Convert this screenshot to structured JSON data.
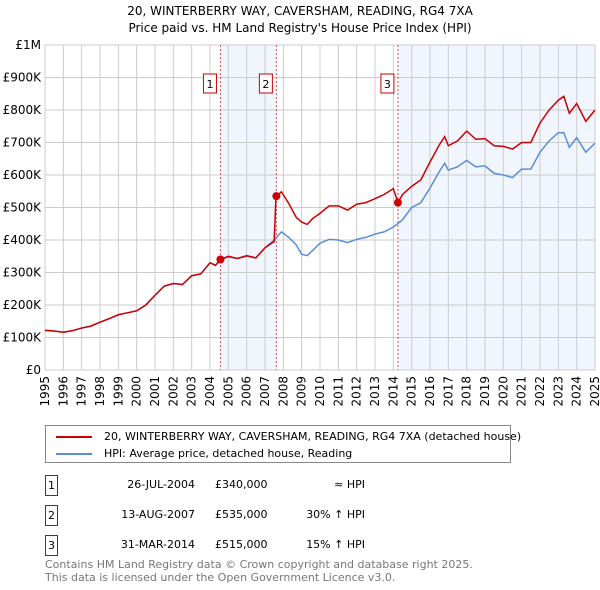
{
  "chart_data": {
    "type": "line",
    "title": "20, WINTERBERRY WAY, CAVERSHAM, READING, RG4 7XA",
    "subtitle": "Price paid vs. HM Land Registry's House Price Index (HPI)",
    "xlim": [
      1995,
      2025
    ],
    "ylim": [
      0,
      1000000
    ],
    "x_ticks": [
      "1995",
      "1996",
      "1997",
      "1998",
      "1999",
      "2000",
      "2001",
      "2002",
      "2003",
      "2004",
      "2005",
      "2006",
      "2007",
      "2008",
      "2009",
      "2010",
      "2011",
      "2012",
      "2013",
      "2014",
      "2015",
      "2016",
      "2017",
      "2018",
      "2019",
      "2020",
      "2021",
      "2022",
      "2023",
      "2024",
      "2025"
    ],
    "y_ticks": [
      {
        "v": 0,
        "label": "£0"
      },
      {
        "v": 100000,
        "label": "£100K"
      },
      {
        "v": 200000,
        "label": "£200K"
      },
      {
        "v": 300000,
        "label": "£300K"
      },
      {
        "v": 400000,
        "label": "£400K"
      },
      {
        "v": 500000,
        "label": "£500K"
      },
      {
        "v": 600000,
        "label": "£600K"
      },
      {
        "v": 700000,
        "label": "£700K"
      },
      {
        "v": 800000,
        "label": "£800K"
      },
      {
        "v": 900000,
        "label": "£900K"
      },
      {
        "v": 1000000,
        "label": "£1M"
      }
    ],
    "grid": true,
    "shaded_periods": [
      [
        2004.57,
        2007.62
      ],
      [
        2014.25,
        2025
      ]
    ],
    "series": [
      {
        "name": "20, WINTERBERRY WAY, CAVERSHAM, READING, RG4 7XA (detached house)",
        "color": "#cc0000",
        "points": [
          [
            1995,
            122
          ],
          [
            1995.5,
            120
          ],
          [
            1996,
            116
          ],
          [
            1996.5,
            121
          ],
          [
            1997,
            129
          ],
          [
            1997.5,
            135
          ],
          [
            1998,
            147
          ],
          [
            1998.5,
            158
          ],
          [
            1999,
            170
          ],
          [
            1999.5,
            176
          ],
          [
            2000,
            182
          ],
          [
            2000.5,
            200
          ],
          [
            2001,
            230
          ],
          [
            2001.5,
            258
          ],
          [
            2002,
            266
          ],
          [
            2002.5,
            263
          ],
          [
            2003,
            290
          ],
          [
            2003.5,
            296
          ],
          [
            2004,
            330
          ],
          [
            2004.3,
            322
          ],
          [
            2004.57,
            340
          ],
          [
            2005,
            350
          ],
          [
            2005.5,
            343
          ],
          [
            2006,
            352
          ],
          [
            2006.5,
            345
          ],
          [
            2007,
            376
          ],
          [
            2007.5,
            395
          ],
          [
            2007.6,
            535
          ],
          [
            2007.9,
            548
          ],
          [
            2008.3,
            512
          ],
          [
            2008.7,
            470
          ],
          [
            2009,
            455
          ],
          [
            2009.3,
            448
          ],
          [
            2009.6,
            466
          ],
          [
            2010,
            482
          ],
          [
            2010.5,
            505
          ],
          [
            2011,
            505
          ],
          [
            2011.5,
            492
          ],
          [
            2012,
            510
          ],
          [
            2012.5,
            515
          ],
          [
            2013,
            527
          ],
          [
            2013.5,
            540
          ],
          [
            2014,
            558
          ],
          [
            2014.25,
            515
          ],
          [
            2014.5,
            540
          ],
          [
            2015,
            565
          ],
          [
            2015.5,
            585
          ],
          [
            2016,
            640
          ],
          [
            2016.5,
            692
          ],
          [
            2016.8,
            718
          ],
          [
            2017,
            690
          ],
          [
            2017.5,
            705
          ],
          [
            2018,
            735
          ],
          [
            2018.5,
            710
          ],
          [
            2019,
            712
          ],
          [
            2019.5,
            690
          ],
          [
            2020,
            688
          ],
          [
            2020.5,
            680
          ],
          [
            2021,
            700
          ],
          [
            2021.5,
            700
          ],
          [
            2022,
            760
          ],
          [
            2022.5,
            800
          ],
          [
            2023,
            830
          ],
          [
            2023.3,
            842
          ],
          [
            2023.6,
            790
          ],
          [
            2024,
            820
          ],
          [
            2024.5,
            765
          ],
          [
            2025,
            800
          ]
        ]
      },
      {
        "name": "HPI: Average price, detached house, Reading",
        "color": "#5b8ed6",
        "points": [
          [
            1995,
            122
          ],
          [
            1995.5,
            120
          ],
          [
            1996,
            116
          ],
          [
            1996.5,
            121
          ],
          [
            1997,
            129
          ],
          [
            1997.5,
            135
          ],
          [
            1998,
            147
          ],
          [
            1998.5,
            158
          ],
          [
            1999,
            170
          ],
          [
            1999.5,
            176
          ],
          [
            2000,
            182
          ],
          [
            2000.5,
            200
          ],
          [
            2001,
            230
          ],
          [
            2001.5,
            258
          ],
          [
            2002,
            266
          ],
          [
            2002.5,
            263
          ],
          [
            2003,
            290
          ],
          [
            2003.5,
            296
          ],
          [
            2004,
            330
          ],
          [
            2004.3,
            322
          ],
          [
            2004.57,
            340
          ],
          [
            2005,
            348
          ],
          [
            2005.5,
            343
          ],
          [
            2006,
            350
          ],
          [
            2006.5,
            345
          ],
          [
            2007,
            376
          ],
          [
            2007.5,
            400
          ],
          [
            2007.9,
            425
          ],
          [
            2008.3,
            408
          ],
          [
            2008.7,
            385
          ],
          [
            2009,
            356
          ],
          [
            2009.3,
            352
          ],
          [
            2009.6,
            368
          ],
          [
            2010,
            390
          ],
          [
            2010.5,
            402
          ],
          [
            2011,
            400
          ],
          [
            2011.5,
            392
          ],
          [
            2012,
            402
          ],
          [
            2012.5,
            408
          ],
          [
            2013,
            418
          ],
          [
            2013.5,
            425
          ],
          [
            2014,
            440
          ],
          [
            2014.5,
            462
          ],
          [
            2015,
            500
          ],
          [
            2015.5,
            515
          ],
          [
            2016,
            560
          ],
          [
            2016.5,
            610
          ],
          [
            2016.8,
            636
          ],
          [
            2017,
            615
          ],
          [
            2017.5,
            625
          ],
          [
            2018,
            645
          ],
          [
            2018.5,
            625
          ],
          [
            2019,
            628
          ],
          [
            2019.5,
            605
          ],
          [
            2020,
            600
          ],
          [
            2020.5,
            592
          ],
          [
            2021,
            618
          ],
          [
            2021.5,
            618
          ],
          [
            2022,
            670
          ],
          [
            2022.5,
            705
          ],
          [
            2023,
            730
          ],
          [
            2023.3,
            730
          ],
          [
            2023.6,
            685
          ],
          [
            2024,
            715
          ],
          [
            2024.5,
            670
          ],
          [
            2025,
            698
          ]
        ]
      }
    ],
    "sales": [
      {
        "label": "1",
        "x": 2004.57,
        "y": 340000
      },
      {
        "label": "2",
        "x": 2007.62,
        "y": 535000
      },
      {
        "label": "3",
        "x": 2014.25,
        "y": 515000
      }
    ]
  },
  "legend": {
    "property": "20, WINTERBERRY WAY, CAVERSHAM, READING, RG4 7XA (detached house)",
    "hpi": "HPI: Average price, detached house, Reading"
  },
  "transactions": [
    {
      "num": "1",
      "date": "26-JUL-2004",
      "price": "£340,000",
      "hpi": "≈ HPI"
    },
    {
      "num": "2",
      "date": "13-AUG-2007",
      "price": "£535,000",
      "hpi": "30% ↑ HPI"
    },
    {
      "num": "3",
      "date": "31-MAR-2014",
      "price": "£515,000",
      "hpi": "15% ↑ HPI"
    }
  ],
  "footer": {
    "line1": "Contains HM Land Registry data © Crown copyright and database right 2025.",
    "line2": "This data is licensed under the Open Government Licence v3.0."
  }
}
